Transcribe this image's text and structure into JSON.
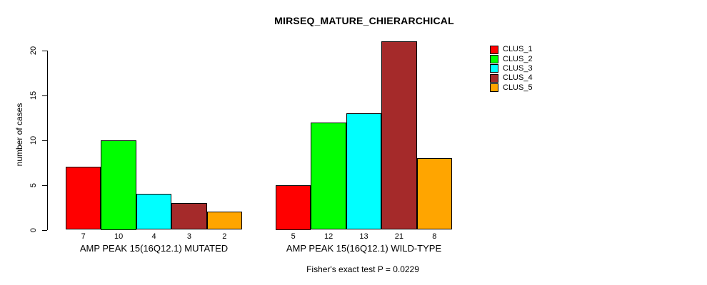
{
  "chart_data": {
    "type": "bar",
    "title": "MIRSEQ_MATURE_CHIERARCHICAL",
    "ylabel": "number of cases",
    "xlabel": "",
    "annotation": "Fisher's exact test P = 0.0229",
    "categories": [
      "AMP PEAK 15(16Q12.1) MUTATED",
      "AMP PEAK 15(16Q12.1) WILD-TYPE"
    ],
    "series": [
      {
        "name": "CLUS_1",
        "color": "#ff0000",
        "values": [
          7,
          5
        ]
      },
      {
        "name": "CLUS_2",
        "color": "#00ff00",
        "values": [
          10,
          12
        ]
      },
      {
        "name": "CLUS_3",
        "color": "#00ffff",
        "values": [
          4,
          13
        ]
      },
      {
        "name": "CLUS_4",
        "color": "#a52a2a",
        "values": [
          3,
          21
        ]
      },
      {
        "name": "CLUS_5",
        "color": "#ffa500",
        "values": [
          2,
          8
        ]
      }
    ],
    "yticks": [
      0,
      5,
      10,
      15,
      20
    ],
    "ylim": [
      0,
      21
    ],
    "bar_value_labels_shown": true,
    "grid": false,
    "legend_position": "top-right",
    "axis_color": "#000000",
    "bar_border_color": "#000000"
  }
}
